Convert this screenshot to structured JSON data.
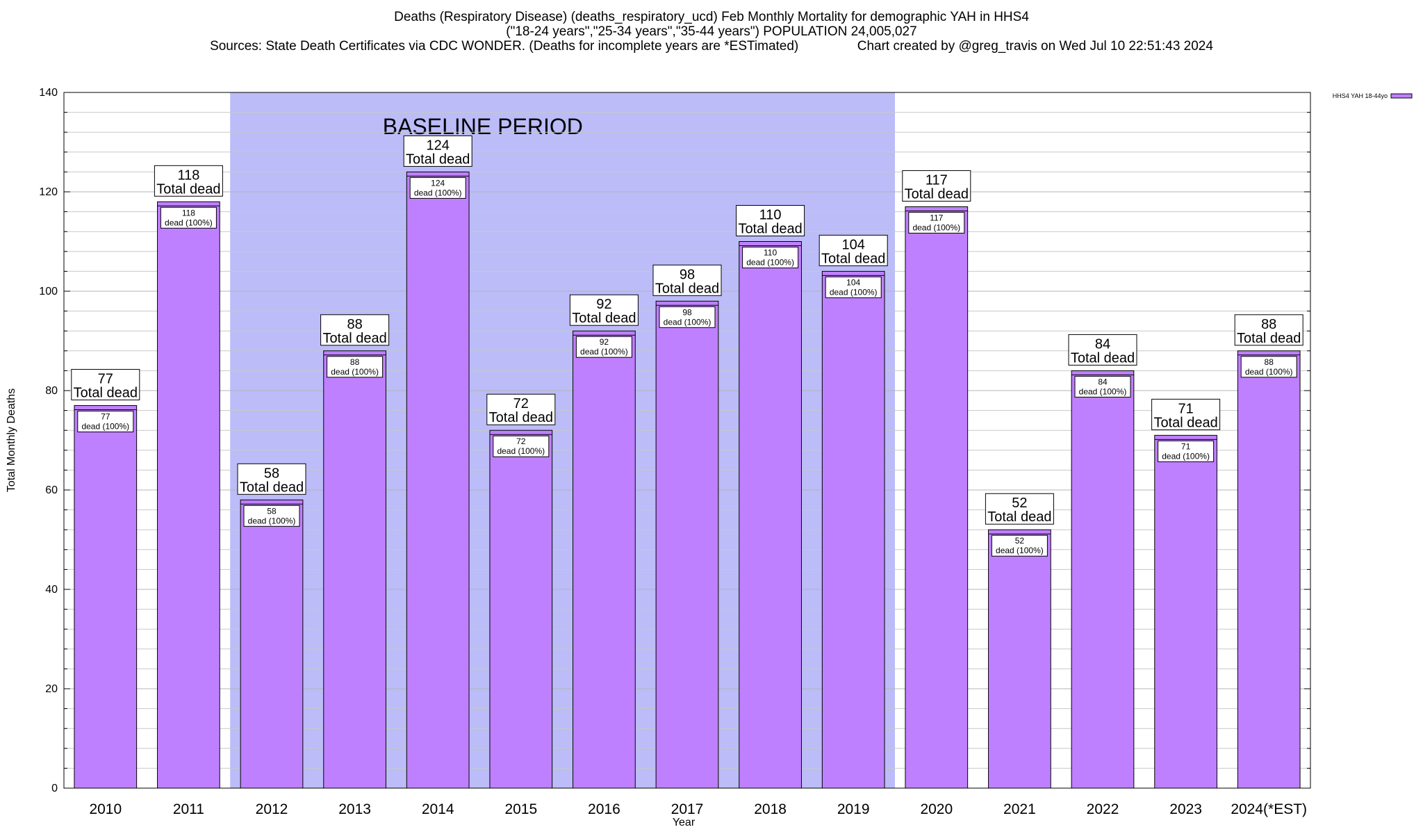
{
  "title": {
    "line1": "Deaths (Respiratory Disease) (deaths_respiratory_ucd) Feb Monthly Mortality for demographic YAH in HHS4",
    "line2": "(\"18-24 years\",\"25-34 years\",\"35-44 years\") POPULATION 24,005,027",
    "sources": "Sources: State Death Certificates via CDC WONDER. (Deaths for incomplete years are *ESTimated)",
    "credit": "Chart created by @greg_travis on Wed Jul 10 22:51:43 2024"
  },
  "colors": {
    "bar_fill": "#bf80ff",
    "bar_stroke": "#000000",
    "baseline_region": "#bbbcf8",
    "grid": "#c8c8c8"
  },
  "chart_data": {
    "type": "bar",
    "categories": [
      "2010",
      "2011",
      "2012",
      "2013",
      "2014",
      "2015",
      "2016",
      "2017",
      "2018",
      "2019",
      "2020",
      "2021",
      "2022",
      "2023",
      "2024(*EST)"
    ],
    "series": [
      {
        "name": "HHS4 YAH 18-44yo",
        "values": [
          77,
          118,
          58,
          88,
          124,
          72,
          92,
          98,
          110,
          104,
          117,
          52,
          84,
          71,
          88
        ]
      }
    ],
    "bar_label_total": "Total dead",
    "bar_label_inner": "dead (100%)",
    "xlabel": "Year",
    "ylabel": "Total Monthly Deaths",
    "ylim": [
      0,
      140
    ],
    "yticks": [
      0,
      20,
      40,
      60,
      80,
      100,
      120,
      140
    ],
    "grid": true,
    "legend_position": "top-right",
    "baseline_region": {
      "label": "BASELINE PERIOD",
      "from": "2012",
      "to": "2019"
    }
  }
}
